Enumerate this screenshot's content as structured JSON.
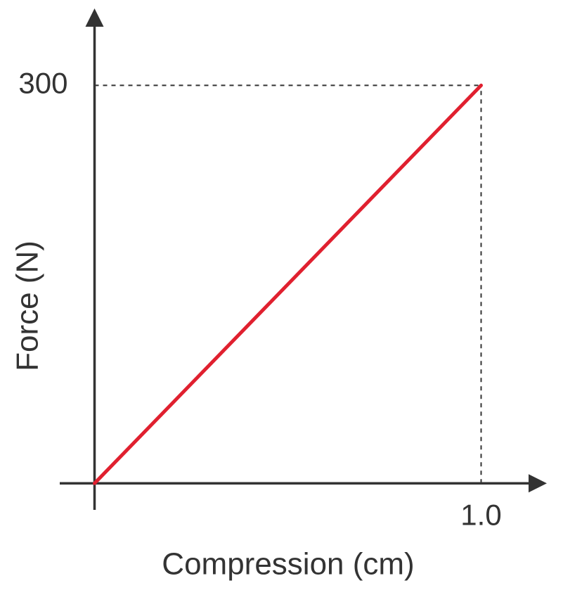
{
  "chart_data": {
    "type": "line",
    "x_label": "Compression (cm)",
    "y_label": "Force (N)",
    "x": [
      0,
      1.0
    ],
    "series": [
      {
        "name": null,
        "color": "#e0202f",
        "values": [
          0,
          300
        ]
      }
    ],
    "xlim": [
      -0.09,
      1.17
    ],
    "ylim": [
      -20,
      358
    ],
    "xticks": [
      {
        "value": 1.0,
        "label": "1.0"
      }
    ],
    "yticks": [
      300
    ],
    "grid": "dashed"
  }
}
